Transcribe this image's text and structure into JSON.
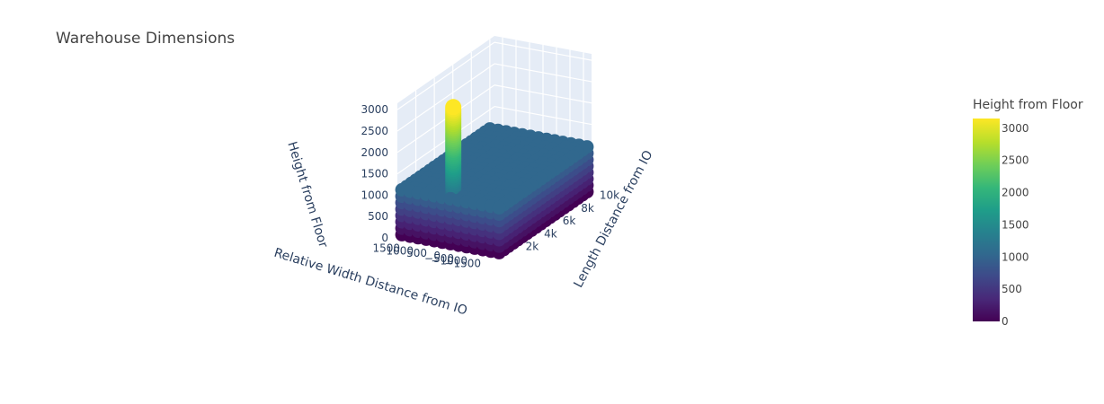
{
  "chart_data": {
    "type": "scatter3d",
    "title": "Warehouse Dimensions",
    "xlabel": "Relative Width Distance from IO",
    "ylabel": "Length Distance from IO",
    "zlabel": "Height from Floor",
    "x_ticks": [
      "1500",
      "1000",
      "500",
      "0",
      "−500",
      "−1000",
      "−1500"
    ],
    "y_ticks": [
      "2k",
      "4k",
      "6k",
      "8k",
      "10k"
    ],
    "z_ticks": [
      "0",
      "500",
      "1000",
      "1500",
      "2000",
      "2500",
      "3000"
    ],
    "xlim": [
      -1800,
      1800
    ],
    "ylim": [
      0,
      10500
    ],
    "zlim": [
      0,
      3150
    ],
    "colorscale": "Viridis",
    "colorbar": {
      "title": "Height from Floor",
      "ticks": [
        "0",
        "500",
        "1000",
        "1500",
        "2000",
        "2500",
        "3000"
      ],
      "range": [
        0,
        3150
      ]
    },
    "racks": {
      "x_min": -1800,
      "x_max": 1800,
      "y_min": 500,
      "y_max": 10000,
      "levels": [
        0,
        150,
        300,
        450,
        600,
        750,
        900,
        1050
      ]
    },
    "column": {
      "x": 0,
      "y": 800,
      "z_min": 0,
      "z_max": 3150
    }
  }
}
